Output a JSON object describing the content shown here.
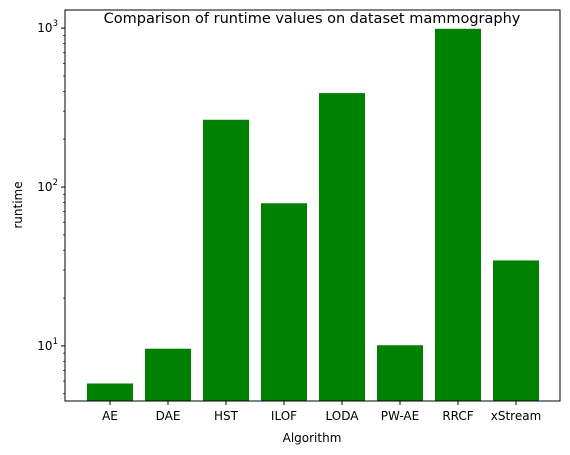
{
  "chart_data": {
    "type": "bar",
    "title": "Comparison of runtime values on dataset mammography",
    "xlabel": "Algorithm",
    "ylabel": "runtime",
    "yscale": "log",
    "ylim": [
      4.5,
      1300
    ],
    "bar_color": "#008000",
    "grid": false,
    "categories": [
      "AE",
      "DAE",
      "HST",
      "ILOF",
      "LODA",
      "PW-AE",
      "RRCF",
      "xStream"
    ],
    "values": [
      5.8,
      9.6,
      265,
      79,
      390,
      10.1,
      990,
      34.5
    ],
    "y_ticks": [
      {
        "value": 10,
        "base": "10",
        "exp": "1"
      },
      {
        "value": 100,
        "base": "10",
        "exp": "2"
      },
      {
        "value": 1000,
        "base": "10",
        "exp": "3"
      }
    ]
  }
}
